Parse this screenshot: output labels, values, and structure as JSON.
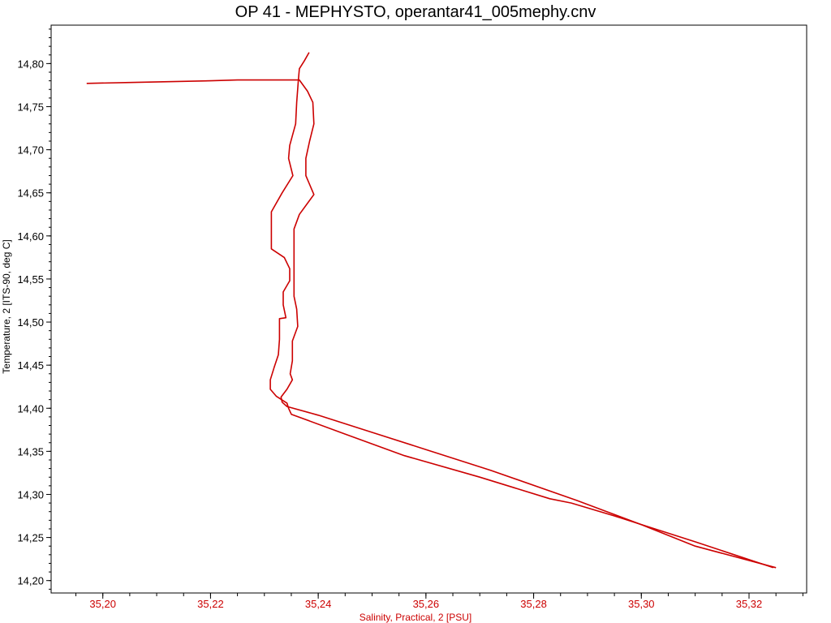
{
  "chart_data": {
    "type": "line",
    "title": "OP 41 - MEPHYSTO, operantar41_005mephy.cnv",
    "xlabel": "Salinity, Practical, 2 [PSU]",
    "ylabel": "Temperature, 2 [ITS-90, deg C]",
    "xlim": [
      35.1904,
      35.3307
    ],
    "ylim": [
      14.1856,
      14.8446
    ],
    "x_ticks": [
      "35,20",
      "35,22",
      "35,24",
      "35,26",
      "35,28",
      "35,30",
      "35,32"
    ],
    "x_tick_values": [
      35.2,
      35.22,
      35.24,
      35.26,
      35.28,
      35.3,
      35.32
    ],
    "y_ticks": [
      "14,80",
      "14,75",
      "14,70",
      "14,65",
      "14,60",
      "14,55",
      "14,50",
      "14,45",
      "14,40",
      "14,35",
      "14,30",
      "14,25",
      "14,20"
    ],
    "y_tick_values": [
      14.8,
      14.75,
      14.7,
      14.65,
      14.6,
      14.55,
      14.5,
      14.45,
      14.4,
      14.35,
      14.3,
      14.25,
      14.2
    ],
    "grid": false,
    "legend": "none",
    "line_color": "#cc0000",
    "series": [
      {
        "points": [
          [
            35.197,
            14.777
          ],
          [
            35.205,
            14.778
          ],
          [
            35.22,
            14.78
          ],
          [
            35.225,
            14.781
          ],
          [
            35.2365,
            14.781
          ],
          [
            35.238,
            14.768
          ],
          [
            35.239,
            14.755
          ],
          [
            35.2392,
            14.73
          ],
          [
            35.2384,
            14.71
          ],
          [
            35.2377,
            14.69
          ],
          [
            35.2377,
            14.67
          ],
          [
            35.2392,
            14.648
          ],
          [
            35.2365,
            14.625
          ],
          [
            35.2355,
            14.608
          ],
          [
            35.2355,
            14.58
          ],
          [
            35.2355,
            14.555
          ],
          [
            35.2355,
            14.53
          ],
          [
            35.236,
            14.515
          ],
          [
            35.2362,
            14.495
          ],
          [
            35.2352,
            14.478
          ],
          [
            35.2352,
            14.455
          ],
          [
            35.2348,
            14.44
          ],
          [
            35.2352,
            14.433
          ],
          [
            35.2342,
            14.422
          ],
          [
            35.2331,
            14.413
          ],
          [
            35.2333,
            14.407
          ],
          [
            35.2342,
            14.402
          ],
          [
            35.24,
            14.392
          ],
          [
            35.25,
            14.372
          ],
          [
            35.26,
            14.352
          ],
          [
            35.272,
            14.328
          ],
          [
            35.288,
            14.293
          ],
          [
            35.3,
            14.265
          ],
          [
            35.31,
            14.24
          ],
          [
            35.325,
            14.215
          ]
        ]
      },
      {
        "points": [
          [
            35.3245,
            14.215
          ],
          [
            35.31,
            14.245
          ],
          [
            35.295,
            14.275
          ],
          [
            35.287,
            14.29
          ],
          [
            35.283,
            14.295
          ],
          [
            35.27,
            14.32
          ],
          [
            35.256,
            14.345
          ],
          [
            35.245,
            14.37
          ],
          [
            35.235,
            14.393
          ],
          [
            35.2345,
            14.4
          ],
          [
            35.2342,
            14.406
          ],
          [
            35.2322,
            14.414
          ],
          [
            35.2311,
            14.422
          ],
          [
            35.2311,
            14.433
          ],
          [
            35.2318,
            14.447
          ],
          [
            35.2326,
            14.462
          ],
          [
            35.2328,
            14.48
          ],
          [
            35.2328,
            14.504
          ],
          [
            35.234,
            14.505
          ],
          [
            35.2335,
            14.52
          ],
          [
            35.2335,
            14.535
          ],
          [
            35.2347,
            14.548
          ],
          [
            35.2347,
            14.562
          ],
          [
            35.2337,
            14.575
          ],
          [
            35.2313,
            14.585
          ],
          [
            35.2313,
            14.6
          ],
          [
            35.2313,
            14.628
          ],
          [
            35.2333,
            14.65
          ],
          [
            35.2353,
            14.67
          ],
          [
            35.2345,
            14.69
          ],
          [
            35.2347,
            14.705
          ],
          [
            35.2358,
            14.73
          ],
          [
            35.236,
            14.755
          ],
          [
            35.2363,
            14.78
          ],
          [
            35.2365,
            14.794
          ],
          [
            35.2374,
            14.803
          ],
          [
            35.2383,
            14.813
          ]
        ]
      }
    ]
  }
}
